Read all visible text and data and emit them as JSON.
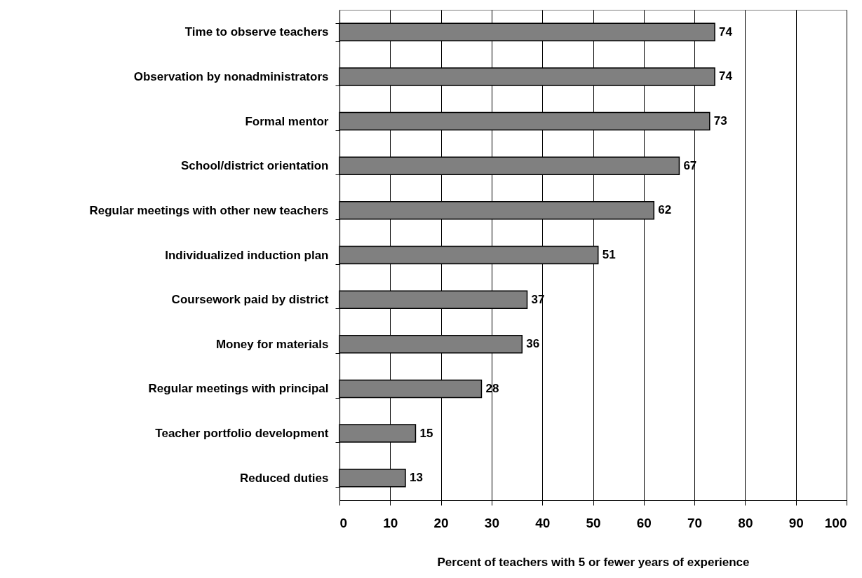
{
  "chart_data": {
    "type": "bar",
    "orientation": "horizontal",
    "xlabel": "Percent of teachers with 5 or fewer years of experience",
    "categories": [
      "Time to observe teachers",
      "Observation by nonadministrators",
      "Formal mentor",
      "School/district orientation",
      "Regular meetings with other new teachers",
      "Individualized induction plan",
      "Coursework paid by district",
      "Money for materials",
      "Regular meetings with principal",
      "Teacher portfolio development",
      "Reduced duties"
    ],
    "values": [
      74,
      74,
      73,
      67,
      62,
      51,
      37,
      36,
      28,
      15,
      13
    ],
    "color": "#808080",
    "xlim": [
      0,
      100
    ],
    "xticks": [
      0,
      10,
      20,
      30,
      40,
      50,
      60,
      70,
      80,
      90,
      100
    ],
    "grid": "x",
    "data_labels": true
  }
}
